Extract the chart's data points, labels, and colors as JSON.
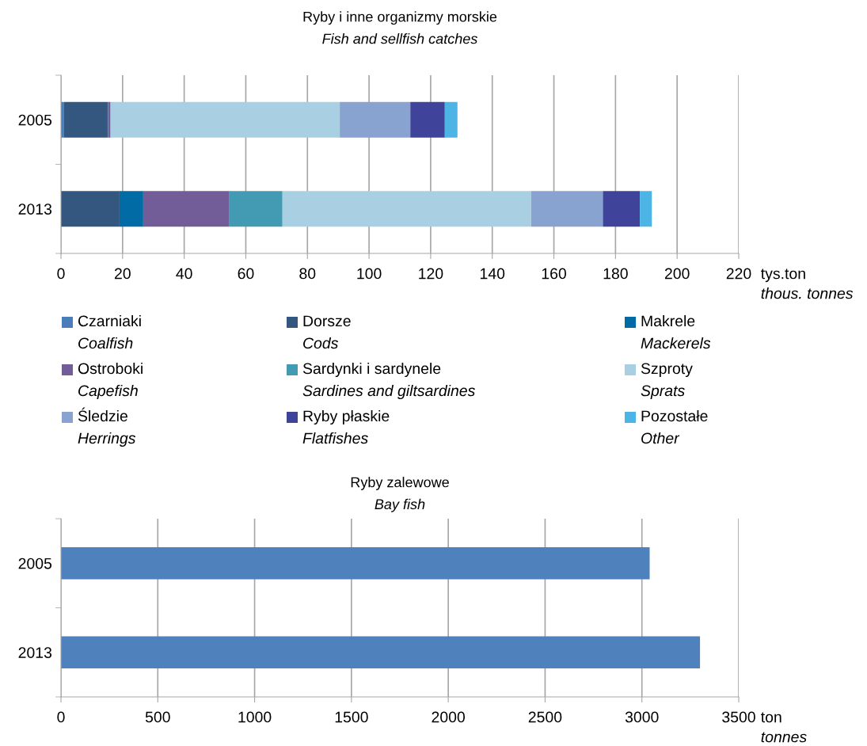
{
  "chart_data": [
    {
      "type": "bar",
      "title": "Ryby i inne organizmy morskie\nFish and sellfish catches",
      "xlabel": "tys.ton\nthous. tonnes",
      "orientation": "horizontal",
      "stacked": true,
      "categories": [
        "2005",
        "2013"
      ],
      "xlim": [
        0,
        220
      ],
      "xticks": [
        0,
        20,
        40,
        60,
        80,
        100,
        120,
        140,
        160,
        180,
        200,
        220
      ],
      "grid": "x",
      "legend": "bottom",
      "series": [
        {
          "name": "Czarniaki\nCoalfish",
          "color": "#4a7ebb",
          "values": [
            1.0,
            0
          ]
        },
        {
          "name": "Dorsze\nCods",
          "color": "#34577f",
          "values": [
            13.9,
            19.0
          ]
        },
        {
          "name": "Makrele\nMackerels",
          "color": "#006ba4",
          "values": [
            0.4,
            7.7
          ]
        },
        {
          "name": "Ostroboki\nCapefish",
          "color": "#735d98",
          "values": [
            0.8,
            27.8
          ]
        },
        {
          "name": "Sardynki i sardynele\nSardines and giltsardines",
          "color": "#439bb3",
          "values": [
            0,
            17.4
          ]
        },
        {
          "name": "Szproty\nSprats",
          "color": "#a8d0e2",
          "values": [
            74.4,
            80.7
          ]
        },
        {
          "name": "Śledzie\nHerrings",
          "color": "#88a3cf",
          "values": [
            22.9,
            23.3
          ]
        },
        {
          "name": "Ryby płaskie\nFlatfishes",
          "color": "#3f439a",
          "values": [
            11.2,
            12.0
          ]
        },
        {
          "name": "Pozostałe\nOther",
          "color": "#4db4e6",
          "values": [
            4.1,
            3.9
          ]
        }
      ]
    },
    {
      "type": "bar",
      "title": "Ryby zalewowe\nBay fish",
      "xlabel": "ton\ntonnes",
      "orientation": "horizontal",
      "categories": [
        "2005",
        "2013"
      ],
      "xlim": [
        0,
        3500
      ],
      "xticks": [
        0,
        500,
        1000,
        1500,
        2000,
        2500,
        3000,
        3500
      ],
      "grid": "x",
      "series": [
        {
          "color": "#4f81bd",
          "values": [
            3040,
            3300
          ]
        }
      ]
    }
  ]
}
